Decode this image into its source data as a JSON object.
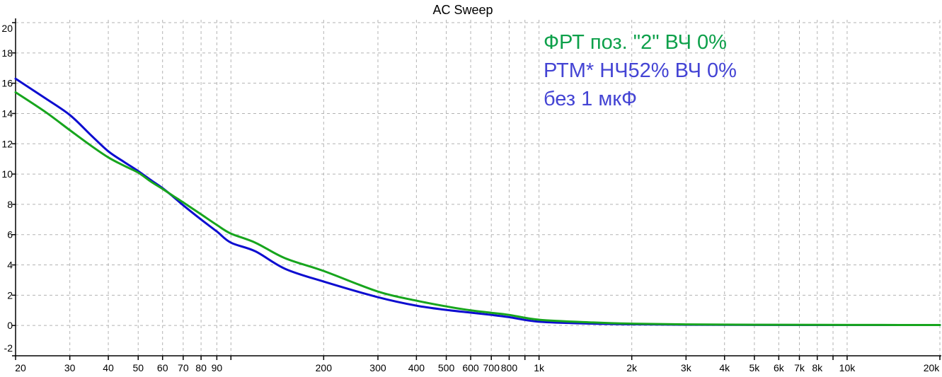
{
  "chart_data": {
    "type": "line",
    "title": "AC Sweep",
    "x_axis": {
      "scale": "log",
      "min": 20,
      "max": 20000,
      "ticks": [
        {
          "value": 20,
          "label": "20"
        },
        {
          "value": 30,
          "label": "30"
        },
        {
          "value": 40,
          "label": "40"
        },
        {
          "value": 50,
          "label": "50"
        },
        {
          "value": 60,
          "label": "60"
        },
        {
          "value": 70,
          "label": "70"
        },
        {
          "value": 80,
          "label": "80"
        },
        {
          "value": 90,
          "label": "90"
        },
        {
          "value": 100,
          "label": ""
        },
        {
          "value": 200,
          "label": "200"
        },
        {
          "value": 300,
          "label": "300"
        },
        {
          "value": 400,
          "label": "400"
        },
        {
          "value": 500,
          "label": "500"
        },
        {
          "value": 600,
          "label": "600"
        },
        {
          "value": 700,
          "label": "700"
        },
        {
          "value": 800,
          "label": "800"
        },
        {
          "value": 900,
          "label": ""
        },
        {
          "value": 1000,
          "label": "1k"
        },
        {
          "value": 2000,
          "label": "2k"
        },
        {
          "value": 3000,
          "label": "3k"
        },
        {
          "value": 4000,
          "label": "4k"
        },
        {
          "value": 5000,
          "label": "5k"
        },
        {
          "value": 6000,
          "label": "6k"
        },
        {
          "value": 7000,
          "label": "7k"
        },
        {
          "value": 8000,
          "label": "8k"
        },
        {
          "value": 9000,
          "label": ""
        },
        {
          "value": 10000,
          "label": "10k"
        },
        {
          "value": 20000,
          "label": "20k"
        }
      ]
    },
    "y_axis": {
      "min": -2,
      "max": 20,
      "step": 2,
      "tick_labels": [
        "20",
        "18",
        "16",
        "14",
        "12",
        "10",
        "8",
        "6",
        "4",
        "2",
        "0",
        "-2"
      ]
    },
    "grid": {
      "style": "dashed",
      "color": "#b3b3b3"
    },
    "series": [
      {
        "name": "ФРТ поз. \"2\" ВЧ 0%",
        "color": "#17a51d",
        "x": [
          20,
          25,
          30,
          35,
          40,
          45,
          50,
          55,
          60,
          65,
          70,
          80,
          90,
          100,
          120,
          150,
          200,
          300,
          400,
          500,
          600,
          700,
          800,
          1000,
          1500,
          2000,
          3000,
          5000,
          10000,
          20000
        ],
        "y": [
          15.4,
          14.1,
          12.9,
          11.9,
          11.1,
          10.55,
          10.1,
          9.5,
          9.02,
          8.55,
          8.13,
          7.34,
          6.64,
          6.07,
          5.47,
          4.44,
          3.6,
          2.24,
          1.64,
          1.26,
          1.0,
          0.84,
          0.7,
          0.38,
          0.2,
          0.12,
          0.07,
          0.05,
          0.04,
          0.03
        ]
      },
      {
        "name": "РТМ* НЧ52% ВЧ 0% без 1 мкФ",
        "color": "#0d0dd0",
        "x": [
          20,
          25,
          30,
          35,
          40,
          45,
          50,
          55,
          60,
          65,
          70,
          80,
          90,
          100,
          120,
          150,
          200,
          300,
          400,
          500,
          600,
          700,
          800,
          1000,
          1500,
          2000,
          3000,
          5000,
          10000,
          20000
        ],
        "y": [
          16.3,
          15.0,
          13.9,
          12.6,
          11.5,
          10.8,
          10.2,
          9.6,
          9.07,
          8.5,
          7.94,
          7.0,
          6.21,
          5.47,
          4.9,
          3.74,
          2.9,
          1.87,
          1.31,
          1.03,
          0.85,
          0.7,
          0.55,
          0.25,
          0.12,
          0.08,
          0.05,
          0.04,
          0.03,
          0.03
        ]
      }
    ],
    "legend": {
      "position": "top-right",
      "lines": [
        {
          "text": "ФРТ поз. \"2\" ВЧ 0%",
          "color": "#0da04a"
        },
        {
          "text": "РТМ* НЧ52% ВЧ 0%",
          "color": "#4444d4"
        },
        {
          "text": "без 1 мкФ",
          "color": "#4444d4"
        }
      ]
    }
  },
  "colors": {
    "background": "#ffffff",
    "axis": "#000000",
    "grid": "#b3b3b3",
    "tick_text": "#000000"
  }
}
